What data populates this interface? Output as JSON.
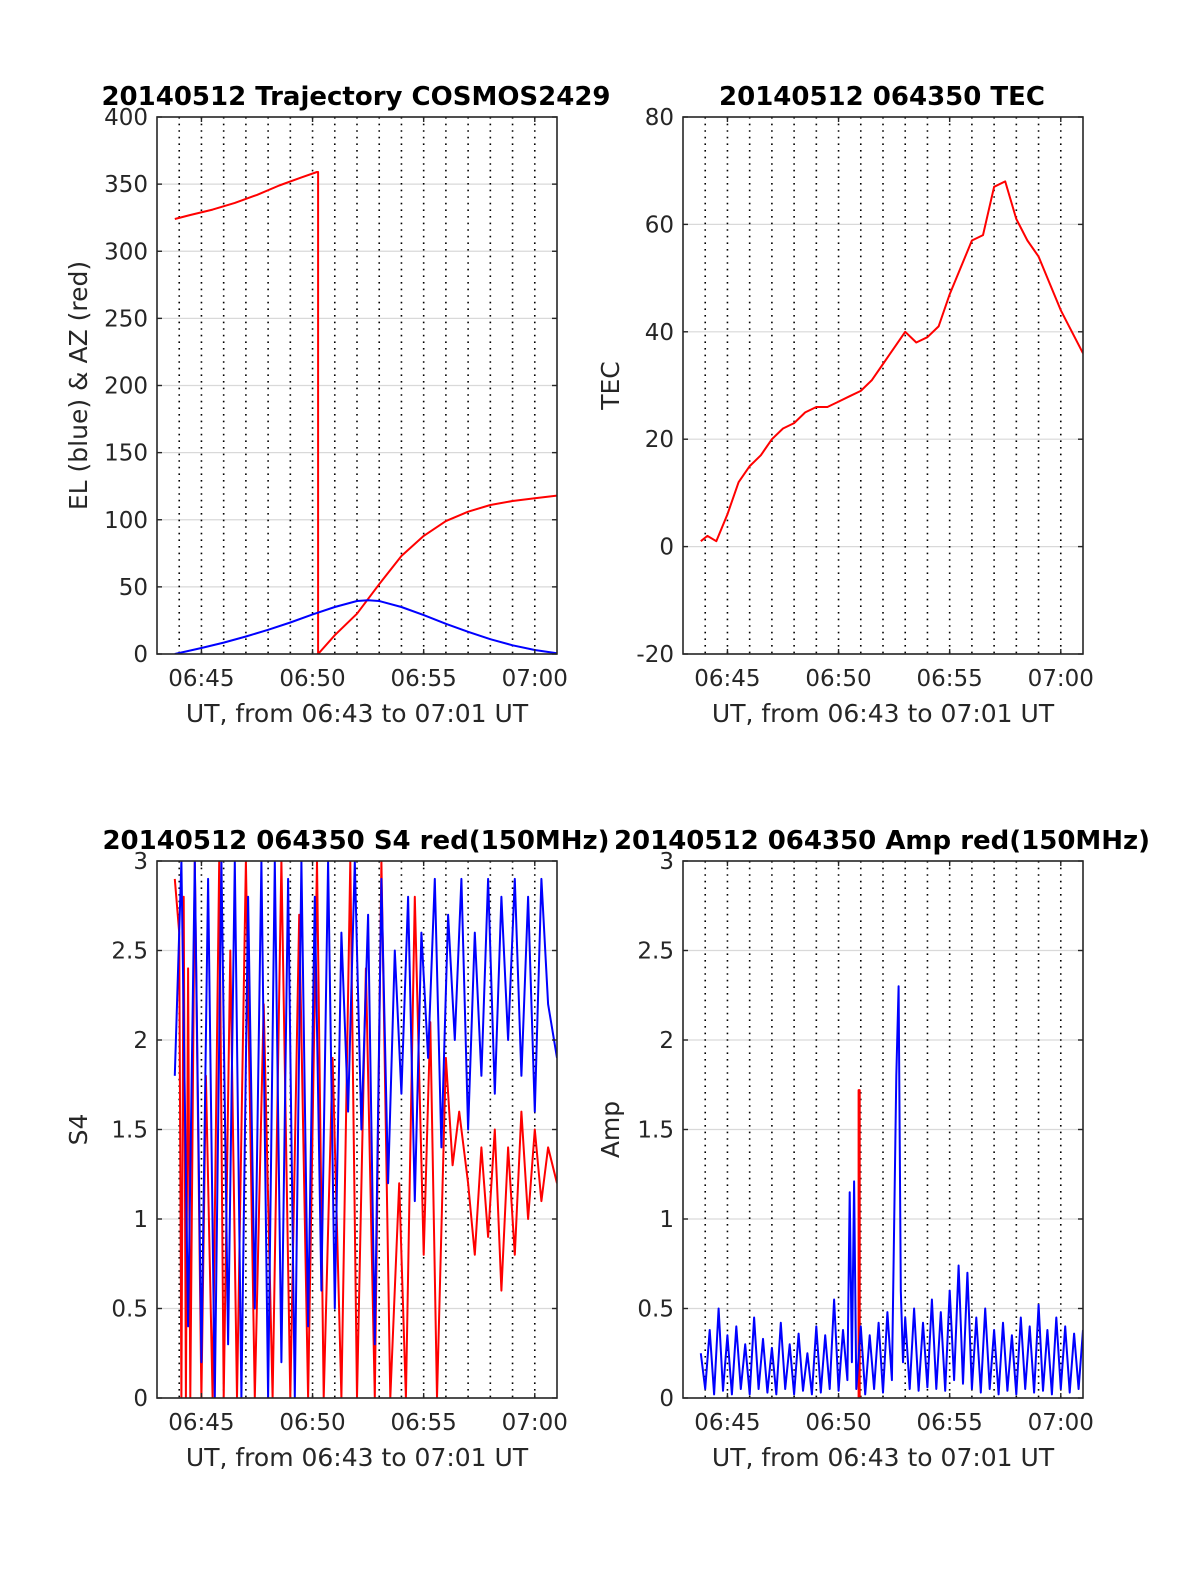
{
  "colors": {
    "red": "#ff0000",
    "blue": "#0000ff",
    "grid": "#d9d9d9",
    "vline": "#000000",
    "axis": "#262626"
  },
  "chart_data": [
    {
      "type": "line",
      "title": "20140512 Trajectory COSMOS2429",
      "xlabel": "UT, from 06:43 to 07:01 UT",
      "ylabel": "EL (blue) & AZ (red)",
      "xlim": [
        43,
        61
      ],
      "ylim": [
        0,
        400
      ],
      "xticks": [
        45,
        50,
        55,
        60
      ],
      "xtick_labels": [
        "06:45",
        "06:50",
        "06:55",
        "07:00"
      ],
      "yticks": [
        0,
        50,
        100,
        150,
        200,
        250,
        300,
        350,
        400
      ],
      "ytick_labels": [
        "0",
        "50",
        "100",
        "150",
        "200",
        "250",
        "300",
        "350",
        "400"
      ],
      "grid": true,
      "dotted_vlines": [
        44,
        45,
        46,
        47,
        48,
        49,
        50,
        51,
        52,
        53,
        54,
        55,
        56,
        57,
        58,
        59,
        60
      ],
      "series": [
        {
          "color": "red",
          "x": [
            43.8,
            44.5,
            45.5,
            46.5,
            47.5,
            48.5,
            49.5,
            50.2,
            50.25,
            50.25,
            51.0,
            52.0,
            53.0,
            54.0,
            55.0,
            56.0,
            57.0,
            58.0,
            59.0,
            60.0,
            61.0
          ],
          "y": [
            324,
            327,
            331,
            336,
            342,
            349,
            355,
            359,
            359,
            0,
            14,
            30,
            52,
            73,
            88,
            99,
            106,
            111,
            114,
            116,
            118
          ]
        },
        {
          "color": "blue",
          "x": [
            43.8,
            45,
            46,
            47,
            48,
            49,
            50,
            51,
            52,
            52.5,
            53,
            54,
            55,
            56,
            57,
            58,
            59,
            60,
            61
          ],
          "y": [
            0,
            4.5,
            8.5,
            13,
            18,
            23.5,
            29.5,
            35,
            39.5,
            40,
            39.5,
            35,
            29,
            22.5,
            16.5,
            11,
            6.5,
            3,
            0.5
          ]
        }
      ]
    },
    {
      "type": "line",
      "title": "20140512 064350 TEC",
      "xlabel": "UT, from 06:43 to 07:01 UT",
      "ylabel": "TEC",
      "xlim": [
        43,
        61
      ],
      "ylim": [
        -20,
        80
      ],
      "xticks": [
        45,
        50,
        55,
        60
      ],
      "xtick_labels": [
        "06:45",
        "06:50",
        "06:55",
        "07:00"
      ],
      "yticks": [
        -20,
        0,
        20,
        40,
        60,
        80
      ],
      "ytick_labels": [
        "-20",
        "0",
        "20",
        "40",
        "60",
        "80"
      ],
      "grid": true,
      "dotted_vlines": [
        44,
        45,
        46,
        47,
        48,
        49,
        50,
        51,
        52,
        53,
        54,
        55,
        56,
        57,
        58,
        59,
        60
      ],
      "series": [
        {
          "color": "red",
          "x": [
            43.8,
            44.1,
            44.5,
            45,
            45.5,
            46,
            46.5,
            47,
            47.5,
            48,
            48.5,
            49,
            49.5,
            50,
            50.5,
            51,
            51.5,
            52,
            52.5,
            53,
            53.5,
            54,
            54.5,
            55,
            55.5,
            56,
            56.5,
            57,
            57.5,
            58,
            58.5,
            59,
            59.5,
            60,
            60.5,
            61
          ],
          "y": [
            1,
            2,
            1,
            6,
            12,
            15,
            17,
            20,
            22,
            23,
            25,
            26,
            26,
            27,
            28,
            29,
            31,
            34,
            37,
            40,
            38,
            39,
            41,
            47,
            52,
            57,
            58,
            67,
            68,
            61,
            57,
            54,
            49,
            44,
            40,
            36
          ]
        }
      ]
    },
    {
      "type": "line",
      "title": "20140512 064350 S4 red(150MHz)",
      "xlabel": "UT, from 06:43 to 07:01 UT",
      "ylabel": "S4",
      "xlim": [
        43,
        61
      ],
      "ylim": [
        0,
        3
      ],
      "xticks": [
        45,
        50,
        55,
        60
      ],
      "xtick_labels": [
        "06:45",
        "06:50",
        "06:55",
        "07:00"
      ],
      "yticks": [
        0,
        0.5,
        1,
        1.5,
        2,
        2.5,
        3
      ],
      "ytick_labels": [
        "0",
        "0.5",
        "1",
        "1.5",
        "2",
        "2.5",
        "3"
      ],
      "grid": true,
      "dotted_vlines": [
        44,
        45,
        46,
        47,
        48,
        49,
        50,
        51,
        52,
        53,
        54,
        55,
        56,
        57,
        58,
        59,
        60
      ],
      "series": [
        {
          "color": "red",
          "x": [
            43.8,
            44.0,
            44.1,
            44.2,
            44.3,
            44.4,
            44.5,
            44.7,
            45.0,
            45.2,
            45.5,
            45.8,
            46.0,
            46.3,
            46.6,
            47.0,
            47.4,
            47.8,
            48.2,
            48.6,
            49.0,
            49.4,
            49.8,
            50.2,
            50.5,
            50.9,
            51.3,
            51.7,
            52.0,
            52.4,
            52.8,
            53.1,
            53.5,
            53.9,
            54.2,
            54.6,
            55.0,
            55.3,
            55.6,
            56.0,
            56.3,
            56.6,
            57.0,
            57.3,
            57.6,
            57.9,
            58.2,
            58.5,
            58.8,
            59.1,
            59.4,
            59.7,
            60.0,
            60.3,
            60.6,
            61.0
          ],
          "y": [
            2.9,
            2.6,
            0,
            2.8,
            0,
            2.4,
            0,
            3,
            0,
            1.8,
            0,
            3,
            0,
            2.5,
            0,
            3,
            0,
            2.2,
            0,
            3,
            0,
            2.7,
            0,
            3,
            0,
            1.9,
            0,
            3,
            0,
            2.4,
            0,
            3,
            0,
            1.2,
            0,
            2.8,
            0.8,
            2.1,
            0,
            1.9,
            1.3,
            1.6,
            1.2,
            0.8,
            1.4,
            0.9,
            1.5,
            0.6,
            1.4,
            0.8,
            1.6,
            1.0,
            1.5,
            1.1,
            1.4,
            1.2
          ]
        },
        {
          "color": "blue",
          "x": [
            43.8,
            44.1,
            44.4,
            44.7,
            45.0,
            45.3,
            45.6,
            45.9,
            46.2,
            46.5,
            46.8,
            47.1,
            47.4,
            47.7,
            48.0,
            48.3,
            48.6,
            48.9,
            49.2,
            49.5,
            49.8,
            50.1,
            50.4,
            50.7,
            51.0,
            51.3,
            51.6,
            51.9,
            52.2,
            52.5,
            52.8,
            53.1,
            53.4,
            53.7,
            54.0,
            54.3,
            54.6,
            54.9,
            55.2,
            55.5,
            55.8,
            56.1,
            56.4,
            56.7,
            57.0,
            57.3,
            57.6,
            57.9,
            58.2,
            58.5,
            58.8,
            59.1,
            59.4,
            59.7,
            60.0,
            60.3,
            60.6,
            61.0
          ],
          "y": [
            1.8,
            3,
            0.4,
            3,
            0.2,
            2.9,
            0,
            3,
            0.3,
            3,
            0,
            2.8,
            0.5,
            3,
            0,
            3,
            0.2,
            2.9,
            0,
            3,
            0.4,
            2.8,
            0.6,
            3,
            0.5,
            2.6,
            1.6,
            3,
            1.5,
            2.7,
            0.3,
            2.9,
            1.2,
            2.5,
            1.7,
            2.8,
            1.1,
            2.6,
            1.9,
            2.9,
            1.4,
            2.7,
            2.0,
            2.9,
            1.5,
            2.6,
            1.8,
            2.9,
            1.7,
            2.8,
            2.0,
            2.9,
            1.8,
            2.8,
            1.6,
            2.9,
            2.2,
            1.9
          ]
        }
      ]
    },
    {
      "type": "line",
      "title": "20140512 064350 Amp red(150MHz)",
      "xlabel": "UT, from 06:43 to 07:01 UT",
      "ylabel": "Amp",
      "xlim": [
        43,
        61
      ],
      "ylim": [
        0,
        3
      ],
      "xticks": [
        45,
        50,
        55,
        60
      ],
      "xtick_labels": [
        "06:45",
        "06:50",
        "06:55",
        "07:00"
      ],
      "yticks": [
        0,
        0.5,
        1,
        1.5,
        2,
        2.5,
        3
      ],
      "ytick_labels": [
        "0",
        "0.5",
        "1",
        "1.5",
        "2",
        "2.5",
        "3"
      ],
      "grid": true,
      "dotted_vlines": [
        44,
        45,
        46,
        47,
        48,
        49,
        50,
        51,
        52,
        53,
        54,
        55,
        56,
        57,
        58,
        59,
        60
      ],
      "series": [
        {
          "color": "red",
          "x": [
            50.9,
            50.9,
            50.95,
            50.95
          ],
          "y": [
            0,
            1.72,
            1.72,
            0
          ]
        },
        {
          "color": "blue",
          "x": [
            43.8,
            44.0,
            44.2,
            44.4,
            44.6,
            44.8,
            45.0,
            45.2,
            45.4,
            45.6,
            45.8,
            46.0,
            46.2,
            46.4,
            46.6,
            46.8,
            47.0,
            47.2,
            47.4,
            47.6,
            47.8,
            48.0,
            48.2,
            48.4,
            48.6,
            48.8,
            49.0,
            49.2,
            49.4,
            49.6,
            49.8,
            50.0,
            50.2,
            50.4,
            50.5,
            50.6,
            50.7,
            50.8,
            51.0,
            51.2,
            51.4,
            51.6,
            51.8,
            52.0,
            52.2,
            52.4,
            52.6,
            52.7,
            52.8,
            52.9,
            53.0,
            53.2,
            53.4,
            53.6,
            53.8,
            54.0,
            54.2,
            54.4,
            54.6,
            54.8,
            55.0,
            55.2,
            55.4,
            55.6,
            55.8,
            56.0,
            56.2,
            56.4,
            56.6,
            56.8,
            57.0,
            57.2,
            57.4,
            57.6,
            57.8,
            58.0,
            58.2,
            58.4,
            58.6,
            58.8,
            59.0,
            59.2,
            59.4,
            59.6,
            59.8,
            60.0,
            60.2,
            60.4,
            60.6,
            60.8,
            61.0
          ],
          "y": [
            0.25,
            0.05,
            0.38,
            0.02,
            0.5,
            0.04,
            0.35,
            0.02,
            0.4,
            0.05,
            0.3,
            0.02,
            0.45,
            0.05,
            0.33,
            0.03,
            0.28,
            0.02,
            0.42,
            0.05,
            0.3,
            0.02,
            0.36,
            0.04,
            0.25,
            0.02,
            0.4,
            0.03,
            0.35,
            0.05,
            0.55,
            0.04,
            0.38,
            0.1,
            1.15,
            0.2,
            1.21,
            0.05,
            0.4,
            0.02,
            0.35,
            0.05,
            0.42,
            0.03,
            0.48,
            0.1,
            1.8,
            2.3,
            0.6,
            0.2,
            0.45,
            0.05,
            0.5,
            0.04,
            0.42,
            0.06,
            0.55,
            0.05,
            0.48,
            0.04,
            0.6,
            0.1,
            0.74,
            0.08,
            0.7,
            0.05,
            0.45,
            0.03,
            0.5,
            0.05,
            0.38,
            0.02,
            0.42,
            0.04,
            0.35,
            0.02,
            0.45,
            0.05,
            0.4,
            0.03,
            0.52,
            0.04,
            0.38,
            0.02,
            0.45,
            0.05,
            0.4,
            0.03,
            0.36,
            0.05,
            0.38
          ]
        }
      ]
    }
  ]
}
